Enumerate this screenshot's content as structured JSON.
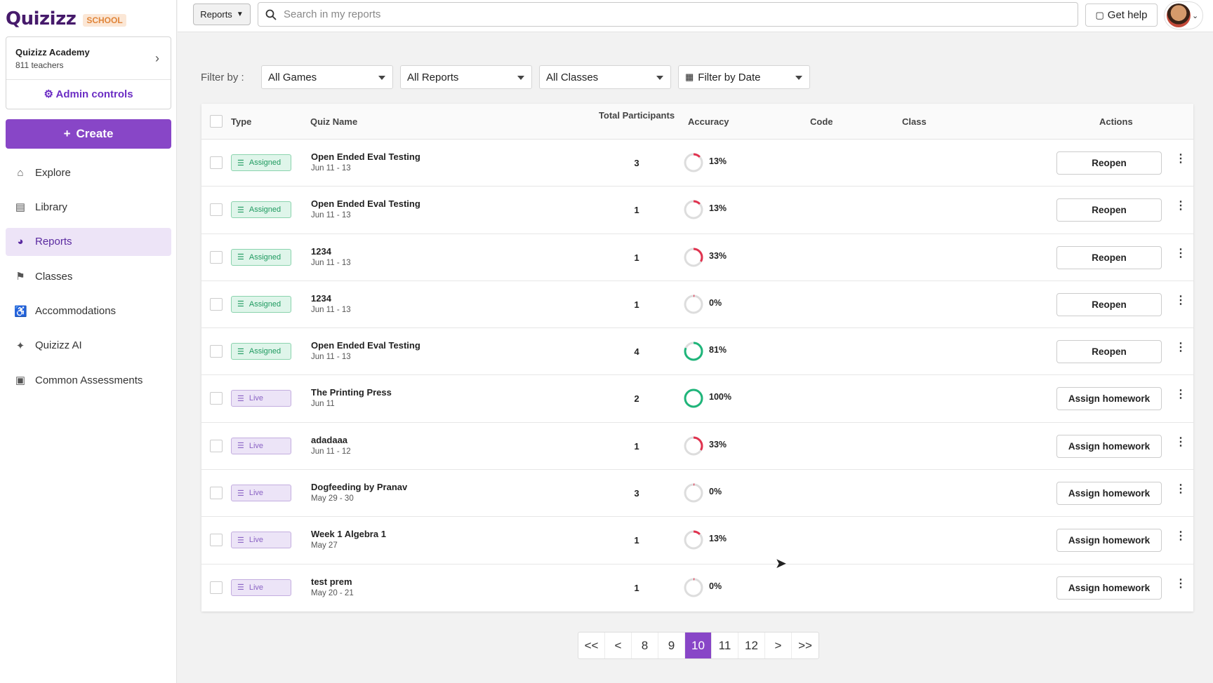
{
  "brand": {
    "name": "Quizizz",
    "tier": "SCHOOL"
  },
  "org": {
    "name": "Quizizz Academy",
    "subtitle": "811 teachers",
    "admin_label": "Admin controls"
  },
  "create_label": "Create",
  "nav": [
    {
      "label": "Explore",
      "icon": "home-icon",
      "glyph": "⌂"
    },
    {
      "label": "Library",
      "icon": "library-icon",
      "glyph": "▤"
    },
    {
      "label": "Reports",
      "icon": "reports-icon",
      "glyph": "◕",
      "active": true
    },
    {
      "label": "Classes",
      "icon": "classes-icon",
      "glyph": "⚑"
    },
    {
      "label": "Accommodations",
      "icon": "accommodations-icon",
      "glyph": "♿"
    },
    {
      "label": "Quizizz AI",
      "icon": "sparkle-icon",
      "glyph": "✦"
    },
    {
      "label": "Common Assessments",
      "icon": "clipboard-icon",
      "glyph": "▣"
    }
  ],
  "topbar": {
    "scope": "Reports",
    "search_placeholder": "Search in my reports",
    "help_label": "Get help"
  },
  "filters": {
    "label": "Filter by :",
    "games": "All Games",
    "reports": "All Reports",
    "classes": "All Classes",
    "date": "Filter by Date"
  },
  "table": {
    "headers": {
      "type": "Type",
      "quiz_name": "Quiz Name",
      "participants": "Total Participants",
      "accuracy": "Accuracy",
      "code": "Code",
      "class": "Class",
      "actions": "Actions"
    },
    "rows": [
      {
        "type": "Assigned",
        "name": "Open Ended Eval Testing",
        "date": "Jun 11 - 13",
        "participants": "3",
        "accuracy": 13,
        "accuracy_label": "13%",
        "action": "Reopen"
      },
      {
        "type": "Assigned",
        "name": "Open Ended Eval Testing",
        "date": "Jun 11 - 13",
        "participants": "1",
        "accuracy": 13,
        "accuracy_label": "13%",
        "action": "Reopen"
      },
      {
        "type": "Assigned",
        "name": "1234",
        "date": "Jun 11 - 13",
        "participants": "1",
        "accuracy": 33,
        "accuracy_label": "33%",
        "action": "Reopen"
      },
      {
        "type": "Assigned",
        "name": "1234",
        "date": "Jun 11 - 13",
        "participants": "1",
        "accuracy": 0,
        "accuracy_label": "0%",
        "action": "Reopen"
      },
      {
        "type": "Assigned",
        "name": "Open Ended Eval Testing",
        "date": "Jun 11 - 13",
        "participants": "4",
        "accuracy": 81,
        "accuracy_label": "81%",
        "action": "Reopen"
      },
      {
        "type": "Live",
        "name": "The Printing Press",
        "date": "Jun 11",
        "participants": "2",
        "accuracy": 100,
        "accuracy_label": "100%",
        "action": "Assign homework"
      },
      {
        "type": "Live",
        "name": "adadaaa",
        "date": "Jun 11 - 12",
        "participants": "1",
        "accuracy": 33,
        "accuracy_label": "33%",
        "action": "Assign homework"
      },
      {
        "type": "Live",
        "name": "Dogfeeding by Pranav",
        "date": "May 29 - 30",
        "participants": "3",
        "accuracy": 0,
        "accuracy_label": "0%",
        "action": "Assign homework"
      },
      {
        "type": "Live",
        "name": "Week 1 Algebra 1",
        "date": "May 27",
        "participants": "1",
        "accuracy": 13,
        "accuracy_label": "13%",
        "action": "Assign homework"
      },
      {
        "type": "Live",
        "name": "test prem",
        "date": "May 20 - 21",
        "participants": "1",
        "accuracy": 0,
        "accuracy_label": "0%",
        "action": "Assign homework"
      }
    ]
  },
  "pagination": {
    "first": "<<",
    "prev": "<",
    "pages": [
      "8",
      "9",
      "10",
      "11",
      "12"
    ],
    "current": "10",
    "next": ">",
    "last": ">>"
  },
  "colors": {
    "accent": "#8846c7",
    "good": "#1fb57a",
    "bad": "#e0334f",
    "track": "#dddddd"
  }
}
